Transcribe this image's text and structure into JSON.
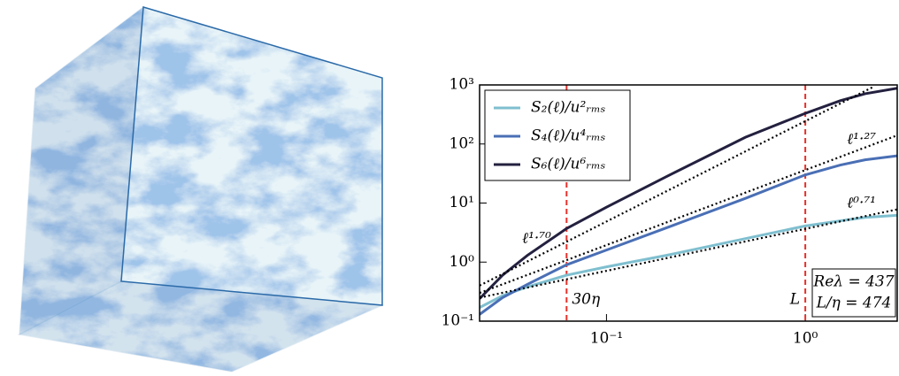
{
  "chart_data": {
    "type": "line",
    "xscale": "log",
    "yscale": "log",
    "xlim": [
      0.023,
      2.9
    ],
    "ylim": [
      0.1,
      1000
    ],
    "xticks": [
      {
        "value": 0.1,
        "label": "10⁻¹"
      },
      {
        "value": 1,
        "label": "10⁰"
      }
    ],
    "yticks": [
      {
        "value": 0.1,
        "label": "10⁻¹"
      },
      {
        "value": 1,
        "label": "10⁰"
      },
      {
        "value": 10,
        "label": "10¹"
      },
      {
        "value": 100,
        "label": "10²"
      },
      {
        "value": 1000,
        "label": "10³"
      }
    ],
    "x": [
      0.023,
      0.03,
      0.04,
      0.063,
      0.1,
      0.2,
      0.5,
      1,
      1.5,
      2,
      2.9
    ],
    "series": [
      {
        "name": "S₂(ℓ)/u²ᵣₘₛ",
        "color": "#7fbfcf",
        "values": [
          0.17,
          0.27,
          0.38,
          0.6,
          0.83,
          1.3,
          2.5,
          4.1,
          5.0,
          5.7,
          6.2
        ]
      },
      {
        "name": "S₄(ℓ)/u⁴ᵣₘₛ",
        "color": "#4a6fb5",
        "values": [
          0.13,
          0.25,
          0.42,
          0.9,
          1.6,
          3.8,
          12,
          30,
          44,
          54,
          63
        ]
      },
      {
        "name": "S₆(ℓ)/u⁶ᵣₘₛ",
        "color": "#23203f",
        "values": [
          0.24,
          0.6,
          1.3,
          3.7,
          8.5,
          28,
          130,
          330,
          540,
          710,
          880
        ]
      }
    ],
    "fit_lines": [
      {
        "label": "ℓ¹·⁷⁰",
        "x": [
          0.023,
          2.2
        ],
        "y": [
          0.4,
          930
        ]
      },
      {
        "label": "ℓ¹·²⁷",
        "x": [
          0.023,
          2.9
        ],
        "y": [
          0.3,
          140
        ]
      },
      {
        "label": "ℓ⁰·⁷¹",
        "x": [
          0.023,
          2.9
        ],
        "y": [
          0.25,
          7.8
        ]
      }
    ],
    "fit_color": "#000000",
    "vlines": [
      {
        "x": 0.063,
        "label": "30η"
      },
      {
        "x": 1,
        "label": "L"
      }
    ],
    "vline_color": "#e8302a",
    "annotation": [
      "Reλ = 437",
      "L/η = 474"
    ],
    "legend": "upper left"
  }
}
